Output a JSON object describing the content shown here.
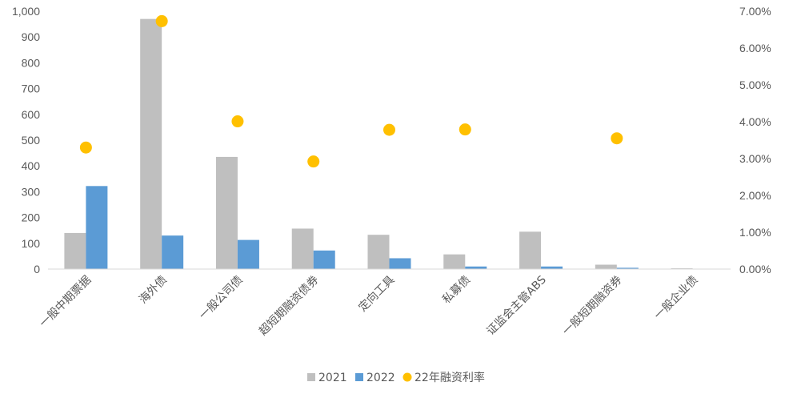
{
  "chart_data": {
    "type": "bar",
    "categories": [
      "一般中期票据",
      "海外债",
      "一般公司债",
      "超短期融资债券",
      "定向工具",
      "私募债",
      "证监会主管ABS",
      "一般短期融资券",
      "一般企业债"
    ],
    "series": [
      {
        "name": "2021",
        "kind": "bar",
        "axis": "left",
        "color": "#bfbfbf",
        "values": [
          140,
          970,
          435,
          157,
          133,
          57,
          145,
          17,
          3
        ]
      },
      {
        "name": "2022",
        "kind": "bar",
        "axis": "left",
        "color": "#5b9bd5",
        "values": [
          322,
          130,
          113,
          72,
          42,
          10,
          10,
          5,
          0
        ]
      },
      {
        "name": "22年融资利率",
        "kind": "scatter",
        "axis": "right",
        "color": "#ffc000",
        "values": [
          0.033,
          0.0673,
          0.0401,
          0.0292,
          0.0378,
          0.0379,
          null,
          0.0355,
          null
        ]
      }
    ],
    "y_left": {
      "ylim": [
        0,
        1000
      ],
      "ticks": [
        "0",
        "100",
        "200",
        "300",
        "400",
        "500",
        "600",
        "700",
        "800",
        "900",
        "1,000"
      ]
    },
    "y_right": {
      "ylim": [
        0,
        0.07
      ],
      "ticks": [
        "0.00%",
        "1.00%",
        "2.00%",
        "3.00%",
        "4.00%",
        "5.00%",
        "6.00%",
        "7.00%"
      ]
    },
    "grid": false,
    "legend": "bottom",
    "title": "",
    "xlabel": "",
    "ylabel": ""
  }
}
